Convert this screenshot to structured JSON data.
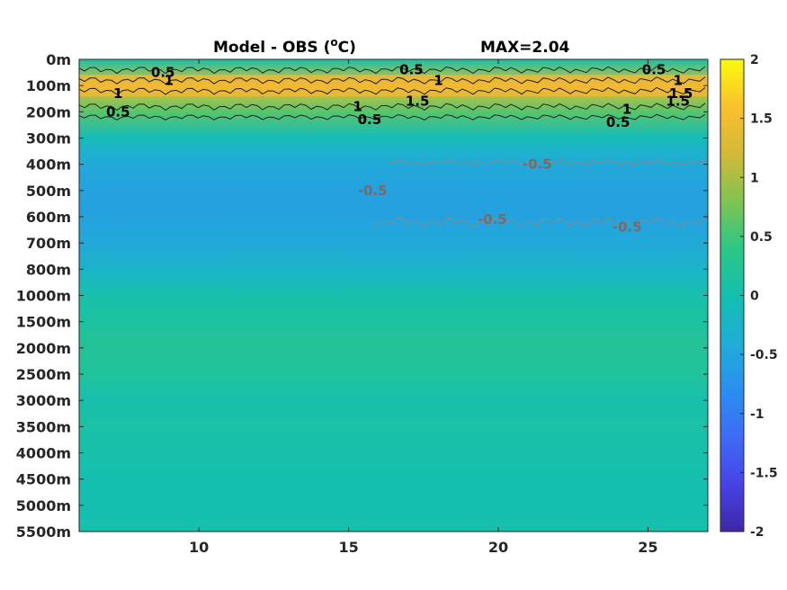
{
  "chart_data": {
    "type": "heatmap",
    "title_left": "Model - OBS (",
    "title_super": "o",
    "title_unit": "C)",
    "title_right": "MAX=2.04",
    "x_ticks": [
      10,
      15,
      20,
      25
    ],
    "xlim": [
      6,
      27
    ],
    "y_tick_labels": [
      "0m",
      "100m",
      "200m",
      "300m",
      "400m",
      "500m",
      "600m",
      "700m",
      "800m",
      "1000m",
      "1500m",
      "2000m",
      "2500m",
      "3000m",
      "3500m",
      "4000m",
      "4500m",
      "5000m",
      "5500m"
    ],
    "colorbar": {
      "range": [
        -2,
        2
      ],
      "ticks": [
        "2",
        "1.5",
        "1",
        "0.5",
        "0",
        "-0.5",
        "-1",
        "-1.5",
        "-2"
      ]
    },
    "colormap": [
      "#3e26a8",
      "#4743e6",
      "#3e6bf7",
      "#2b8ff0",
      "#1fadd6",
      "#14bfb0",
      "#2cc686",
      "#80c452",
      "#d3b937",
      "#fbc02d",
      "#f9fb0e"
    ],
    "depth_profile": {
      "levels": [
        "0m",
        "100m",
        "200m",
        "300m",
        "400m",
        "500m",
        "600m",
        "700m",
        "800m",
        "1000m",
        "1500m",
        "2000m",
        "2500m",
        "3000m",
        "3500m",
        "4000m",
        "4500m",
        "5000m",
        "5500m"
      ],
      "values": [
        0.1,
        1.4,
        0.6,
        -0.1,
        -0.45,
        -0.55,
        -0.55,
        -0.45,
        -0.25,
        0.05,
        0.15,
        0.25,
        0.2,
        0.05,
        0.1,
        0.05,
        0.0,
        0.0,
        0.05
      ]
    },
    "contour_labels": [
      {
        "text": "0.5",
        "x": 8.8,
        "level": "50m"
      },
      {
        "text": "1",
        "x": 9.0,
        "level": "80m"
      },
      {
        "text": "0.5",
        "x": 17.1,
        "level": "40m"
      },
      {
        "text": "1",
        "x": 18.0,
        "level": "80m"
      },
      {
        "text": "1.5",
        "x": 17.3,
        "level": "160m"
      },
      {
        "text": "0.5",
        "x": 25.2,
        "level": "40m"
      },
      {
        "text": "1",
        "x": 26.0,
        "level": "80m"
      },
      {
        "text": "1.5",
        "x": 26.1,
        "level": "130m"
      },
      {
        "text": "1.5",
        "x": 26.0,
        "level": "160m"
      },
      {
        "text": "1",
        "x": 7.3,
        "level": "130m"
      },
      {
        "text": "0.5",
        "x": 7.3,
        "level": "200m"
      },
      {
        "text": "1",
        "x": 15.3,
        "level": "180m"
      },
      {
        "text": "0.5",
        "x": 15.7,
        "level": "230m"
      },
      {
        "text": "1",
        "x": 24.3,
        "level": "190m"
      },
      {
        "text": "0.5",
        "x": 24.0,
        "level": "240m"
      },
      {
        "text": "-0.5",
        "x": 21.3,
        "level": "400m"
      },
      {
        "text": "-0.5",
        "x": 15.8,
        "level": "500m"
      },
      {
        "text": "-0.5",
        "x": 19.8,
        "level": "610m"
      },
      {
        "text": "-0.5",
        "x": 24.3,
        "level": "640m"
      }
    ]
  }
}
